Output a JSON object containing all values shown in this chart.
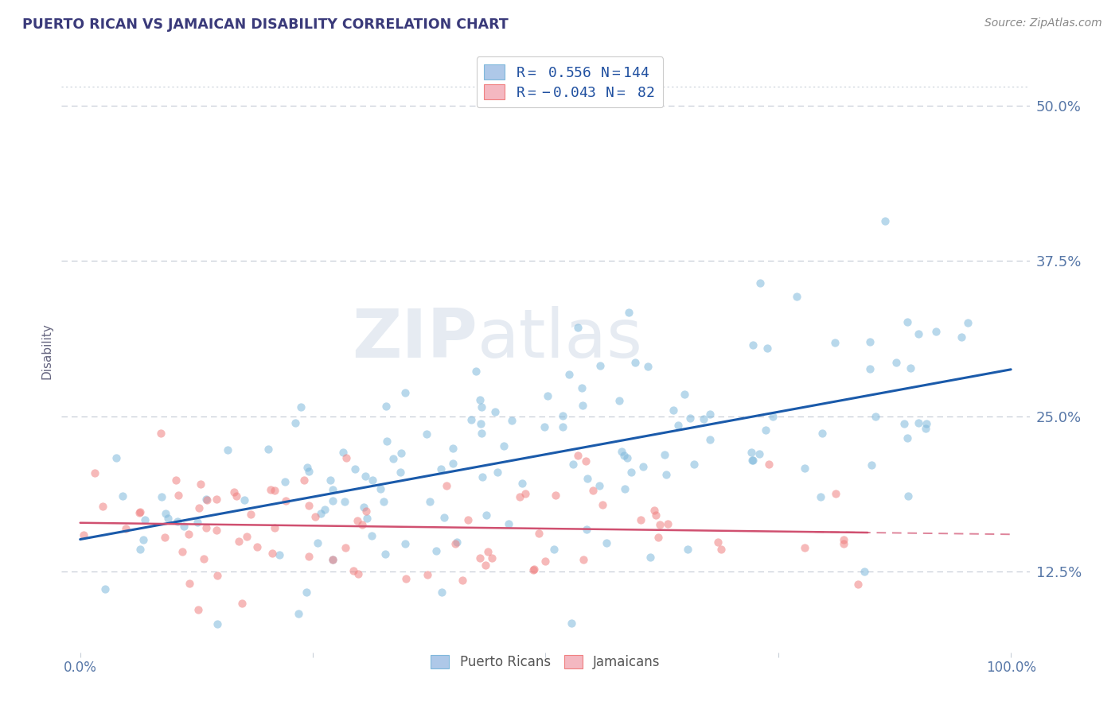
{
  "title": "PUERTO RICAN VS JAMAICAN DISABILITY CORRELATION CHART",
  "source_text": "Source: ZipAtlas.com",
  "ylabel": "Disability",
  "xlim": [
    -0.02,
    1.02
  ],
  "ylim": [
    0.06,
    0.545
  ],
  "yticks": [
    0.125,
    0.25,
    0.375,
    0.5
  ],
  "ytick_labels": [
    "12.5%",
    "25.0%",
    "37.5%",
    "50.0%"
  ],
  "xticks": [
    0.0,
    0.25,
    0.5,
    0.75,
    1.0
  ],
  "xtick_labels": [
    "0.0%",
    "",
    "",
    "",
    "100.0%"
  ],
  "blue_R": 0.556,
  "blue_N": 144,
  "pink_R": -0.043,
  "pink_N": 82,
  "blue_scatter_color": "#7fb8db",
  "pink_scatter_color": "#f08080",
  "trend_blue_color": "#1a5aaa",
  "trend_pink_color": "#d05070",
  "grid_color": "#c8cfd8",
  "background_color": "#ffffff",
  "title_color": "#3a3a7a",
  "source_color": "#888888",
  "axis_label_color": "#666680",
  "tick_color": "#5878a8",
  "legend_text_color": "#2050a0",
  "legend_border_color": "#cccccc",
  "bottom_legend_color": "#555555"
}
